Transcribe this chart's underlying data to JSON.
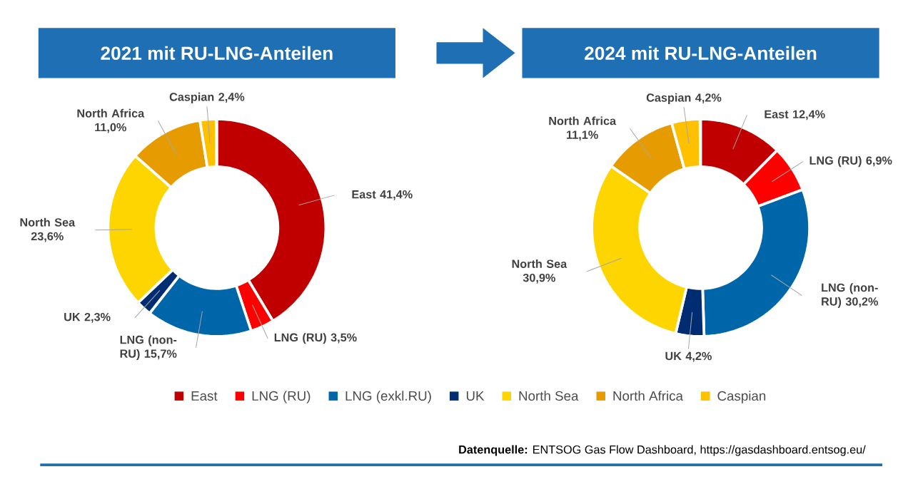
{
  "chart_data": [
    {
      "type": "donut",
      "title": "2021 mit RU-LNG-Anteilen",
      "categories": [
        "East",
        "LNG (RU)",
        "LNG (exkl.RU)",
        "UK",
        "North Sea",
        "North Africa",
        "Caspian"
      ],
      "values": [
        41.4,
        3.5,
        15.7,
        2.3,
        23.6,
        11.0,
        2.4
      ],
      "value_labels": [
        "East 41,4%",
        "LNG (RU) 3,5%",
        "LNG (non-RU) 15,7%",
        "UK 2,3%",
        "North Sea 23,6%",
        "North Africa 11,0%",
        "Caspian 2,4%"
      ],
      "colors": [
        "#c00000",
        "#ff0000",
        "#0066aa",
        "#002d72",
        "#ffd500",
        "#e69c00",
        "#ffc000"
      ],
      "legend": "bottom",
      "annotations": [
        "**Datenquelle:** ENTSOG Gas Flow Dashboard, https://gasdashboard.entsog.eu/"
      ]
    },
    {
      "type": "donut",
      "title": "2024 mit RU-LNG-Anteilen",
      "categories": [
        null,
        null,
        null,
        null,
        null,
        null,
        null
      ],
      "values": [
        12.4,
        6.9,
        30.2,
        4.2,
        30.9,
        11.1,
        4.2
      ],
      "value_labels": [
        "East 12,4%",
        "LNG (RU) 6,9%",
        "LNG (non-RU) 30,2%",
        "UK 4,2%",
        "North Sea 30,9%",
        "North Africa 11,1%",
        "Caspian 4,2%"
      ],
      "colors": [
        "#c00000",
        "#ff0000",
        "#0066aa",
        "#002d72",
        "#ffd500",
        "#e69c00",
        "#ffc000"
      ]
    }
  ]
}
